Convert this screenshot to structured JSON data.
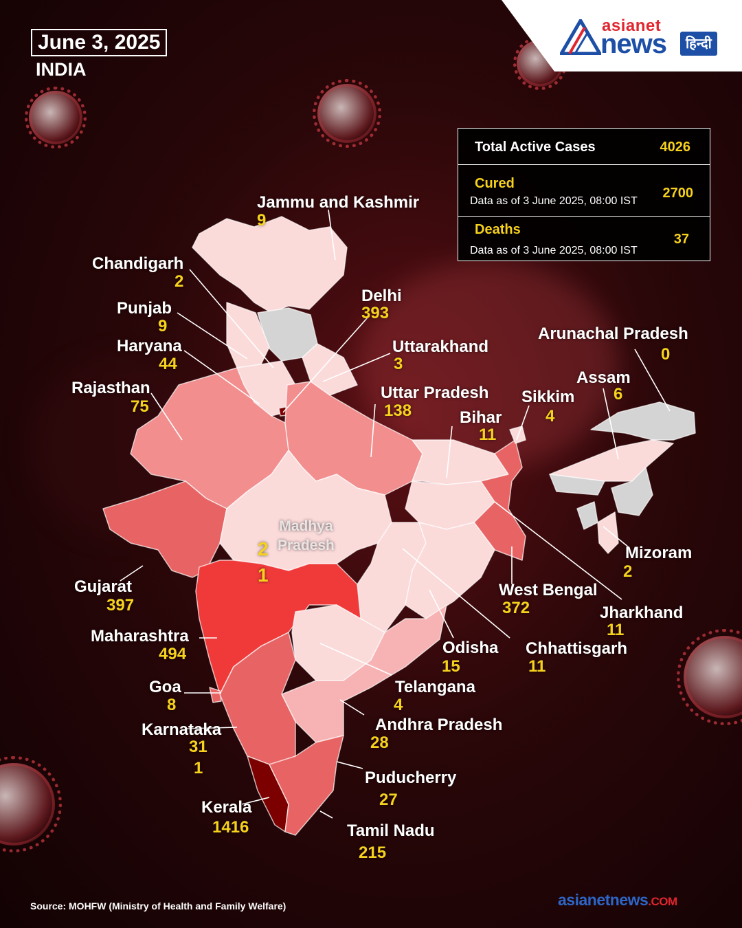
{
  "header": {
    "date": "June 3, 2025",
    "country": "INDIA"
  },
  "logo": {
    "line1": "asianet",
    "line2": "news",
    "badge": "हिन्दी"
  },
  "stats": {
    "total_label": "Total Active Cases",
    "total_value": "4026",
    "cured_label": "Cured",
    "cured_note": "Data as of 3 June 2025, 08:00 IST",
    "cured_value": "2700",
    "deaths_label": "Deaths",
    "deaths_note": "Data as of 3 June 2025, 08:00 IST",
    "deaths_value": "37"
  },
  "states": {
    "jk": {
      "name": "Jammu and Kashmir",
      "cases": "9"
    },
    "chandigarh": {
      "name": "Chandigarh",
      "cases": "2"
    },
    "punjab": {
      "name": "Punjab",
      "cases": "9"
    },
    "haryana": {
      "name": "Haryana",
      "cases": "44"
    },
    "rajasthan": {
      "name": "Rajasthan",
      "cases": "75"
    },
    "delhi": {
      "name": "Delhi",
      "cases": "393"
    },
    "uttarakhand": {
      "name": "Uttarakhand",
      "cases": "3"
    },
    "up": {
      "name": "Uttar Pradesh",
      "cases": "138"
    },
    "bihar": {
      "name": "Bihar",
      "cases": "11"
    },
    "sikkim": {
      "name": "Sikkim",
      "cases": "4"
    },
    "assam": {
      "name": "Assam",
      "cases": "6"
    },
    "arunachal": {
      "name": "Arunachal Pradesh",
      "cases": "0"
    },
    "mizoram": {
      "name": "Mizoram",
      "cases": "2"
    },
    "mp": {
      "name": "Madhya\nPradesh",
      "cases_a": "2",
      "cases_b": "1"
    },
    "gujarat": {
      "name": "Gujarat",
      "cases": "397"
    },
    "maharashtra": {
      "name": "Maharashtra",
      "cases": "494"
    },
    "goa": {
      "name": "Goa",
      "cases": "8"
    },
    "karnataka": {
      "name": "Karnataka",
      "cases_a": "31",
      "cases_b": "1"
    },
    "kerala": {
      "name": "Kerala",
      "cases": "1416"
    },
    "tamilnadu": {
      "name": "Tamil Nadu",
      "cases": "215"
    },
    "puducherry": {
      "name": "Puducherry",
      "cases": "27"
    },
    "andhra": {
      "name": "Andhra Pradesh",
      "cases": "28"
    },
    "telangana": {
      "name": "Telangana",
      "cases": "4"
    },
    "odisha": {
      "name": "Odisha",
      "cases": "15"
    },
    "chhattisgarh": {
      "name": "Chhattisgarh",
      "cases": "11"
    },
    "westbengal": {
      "name": "West Bengal",
      "cases": "372"
    },
    "jharkhand": {
      "name": "Jharkhand",
      "cases": "11"
    }
  },
  "colors": {
    "very_high": "#7d0000",
    "high": "#f03a3a",
    "mid_high": "#e86464",
    "mid": "#f28e8e",
    "low_mid": "#f7b3b3",
    "low": "#fbdada",
    "none": "#d4d4d4",
    "accent_yellow": "#f7d21d"
  },
  "footer": {
    "source": "Source: MOHFW (Ministry of Health and Family Welfare)",
    "brand_a": "asianetnews",
    "brand_b": ".COM"
  }
}
